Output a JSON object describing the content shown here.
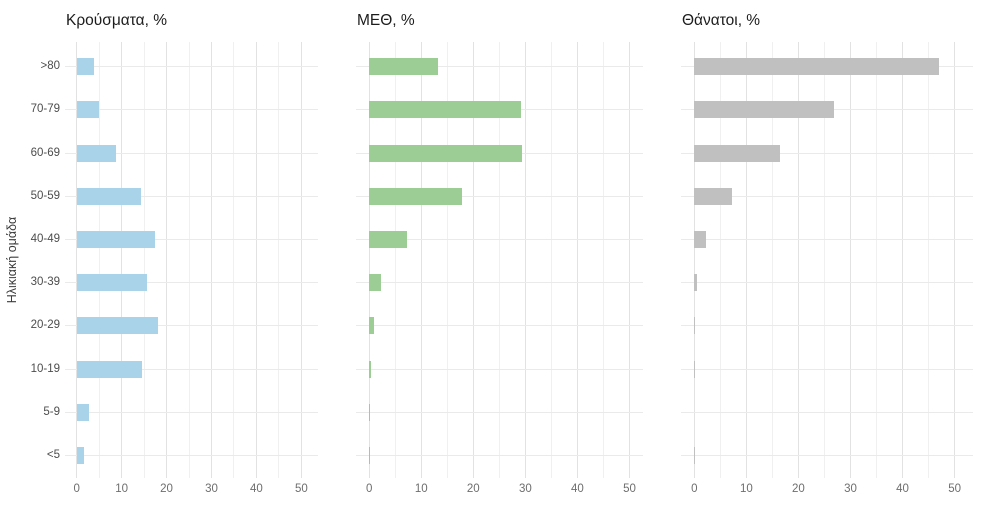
{
  "y_axis_label": "Ηλικιακή ομάδα",
  "chart_data": {
    "type": "bar",
    "orientation": "horizontal",
    "facets": 3,
    "categories": [
      ">80",
      "70-79",
      "60-69",
      "50-59",
      "40-49",
      "30-39",
      "20-29",
      "10-19",
      "5-9",
      "<5"
    ],
    "series": [
      {
        "name": "Κρούσματα, %",
        "color": "#a9d3e8",
        "values": [
          3.8,
          5.0,
          8.8,
          14.3,
          17.4,
          15.6,
          18.2,
          14.5,
          2.8,
          1.7
        ]
      },
      {
        "name": "ΜΕΘ, %",
        "color": "#9ccd94",
        "values": [
          13.3,
          29.2,
          29.4,
          17.9,
          7.3,
          2.3,
          0.9,
          0.3,
          0.2,
          0.2
        ]
      },
      {
        "name": "Θάνατοι, %",
        "color": "#c0c0c0",
        "values": [
          47.0,
          26.9,
          16.5,
          7.3,
          2.3,
          0.6,
          0.1,
          0.1,
          0.0,
          0.1
        ]
      }
    ],
    "xlabel": "",
    "ylabel": "Ηλικιακή ομάδα",
    "xlim": [
      0,
      50
    ],
    "x_ticks": [
      "0",
      "10",
      "20",
      "30",
      "40",
      "50"
    ],
    "x_minor_ticks": [
      5,
      15,
      25,
      35,
      45
    ],
    "grid": true,
    "legend": false,
    "panel_background": "#ffffff"
  }
}
